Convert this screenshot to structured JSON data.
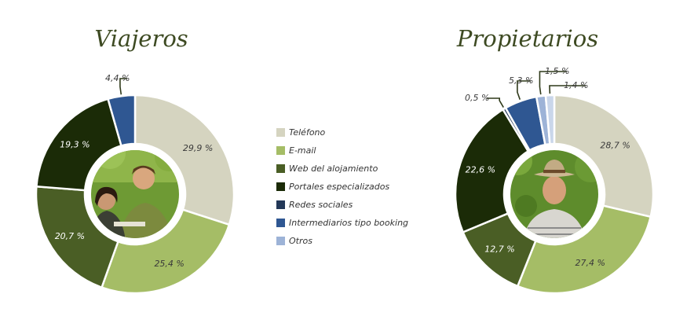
{
  "chart_data": [
    {
      "type": "pie",
      "title": "Viajeros",
      "categories": [
        "Teléfono",
        "E-mail",
        "Web del alojamiento",
        "Portales especializados",
        "Redes sociales",
        "Intermediarios tipo booking",
        "Otros"
      ],
      "values": [
        29.9,
        25.4,
        20.7,
        19.3,
        0,
        4.4,
        0
      ],
      "labels": [
        "29,9 %",
        "25,4 %",
        "20,7 %",
        "19,3 %",
        "",
        "4,4 %",
        ""
      ],
      "donut": true
    },
    {
      "type": "pie",
      "title": "Propietarios",
      "categories": [
        "Teléfono",
        "E-mail",
        "Web del alojamiento",
        "Portales especializados",
        "Redes sociales",
        "Intermediarios tipo booking",
        "Otros"
      ],
      "values": [
        28.7,
        27.4,
        12.7,
        22.6,
        0.5,
        5.3,
        1.5
      ],
      "labels": [
        "28,7 %",
        "27,4 %",
        "12,7 %",
        "22,6 %",
        "0,5 %",
        "5,3 %",
        "1,5 %"
      ],
      "extra_slice": {
        "value": 1.4,
        "label": "1,4 %"
      },
      "donut": true
    }
  ],
  "legend": {
    "items": [
      "Teléfono",
      "E-mail",
      "Web del alojamiento",
      "Portales especializados",
      "Redes sociales",
      "Intermediarios tipo booking",
      "Otros"
    ]
  },
  "colors": {
    "Teléfono": "#d5d4c0",
    "E-mail": "#a5bd66",
    "Web del alojamiento": "#4a5e25",
    "Portales especializados": "#1b2b07",
    "Redes sociales": "#233858",
    "Intermediarios tipo booking": "#2f5792",
    "Otros": "#9db3d7",
    "extra": "#c9d6ea",
    "title": "#3d4a22",
    "photo_bg": "#5e8c2c"
  },
  "icons": {
    "viajeros_photo": "couple-hikers-photo",
    "propietarios_photo": "farmer-hat-photo"
  }
}
